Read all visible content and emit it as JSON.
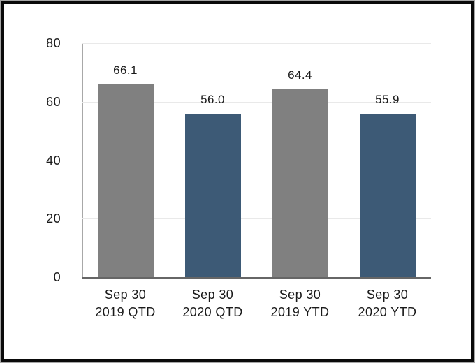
{
  "chart_data": {
    "type": "bar",
    "title": "",
    "xlabel": "",
    "ylabel": "",
    "categories": [
      "Sep 30 2019 QTD",
      "Sep 30 2020 QTD",
      "Sep 30 2019 YTD",
      "Sep 30 2020 YTD"
    ],
    "category_lines": [
      [
        "Sep 30",
        "2019 QTD"
      ],
      [
        "Sep 30",
        "2020 QTD"
      ],
      [
        "Sep 30",
        "2019 YTD"
      ],
      [
        "Sep 30",
        "2020 YTD"
      ]
    ],
    "values": [
      66.1,
      56.0,
      64.4,
      55.9
    ],
    "value_labels": [
      "66.1",
      "56.0",
      "64.4",
      "55.9"
    ],
    "bar_colors": [
      "#808080",
      "#3D5A76",
      "#808080",
      "#3D5A76"
    ],
    "series": [
      {
        "name": "2019",
        "color": "#808080"
      },
      {
        "name": "2020",
        "color": "#3D5A76"
      }
    ],
    "ylim": [
      0,
      80
    ],
    "yticks": [
      "0",
      "20",
      "40",
      "60",
      "80"
    ],
    "grid": true,
    "legend": false
  },
  "colors": {
    "bar_gray": "#808080",
    "bar_blue": "#3D5A76",
    "gridline": "#E9E9E9",
    "y_axis_line": "#A8A8A8",
    "x_axis_line": "#666666",
    "frame_black": "#0A0A0A",
    "frame_gray": "#A6A6A6",
    "text": "#1A1A1A",
    "background": "#FFFFFF"
  }
}
